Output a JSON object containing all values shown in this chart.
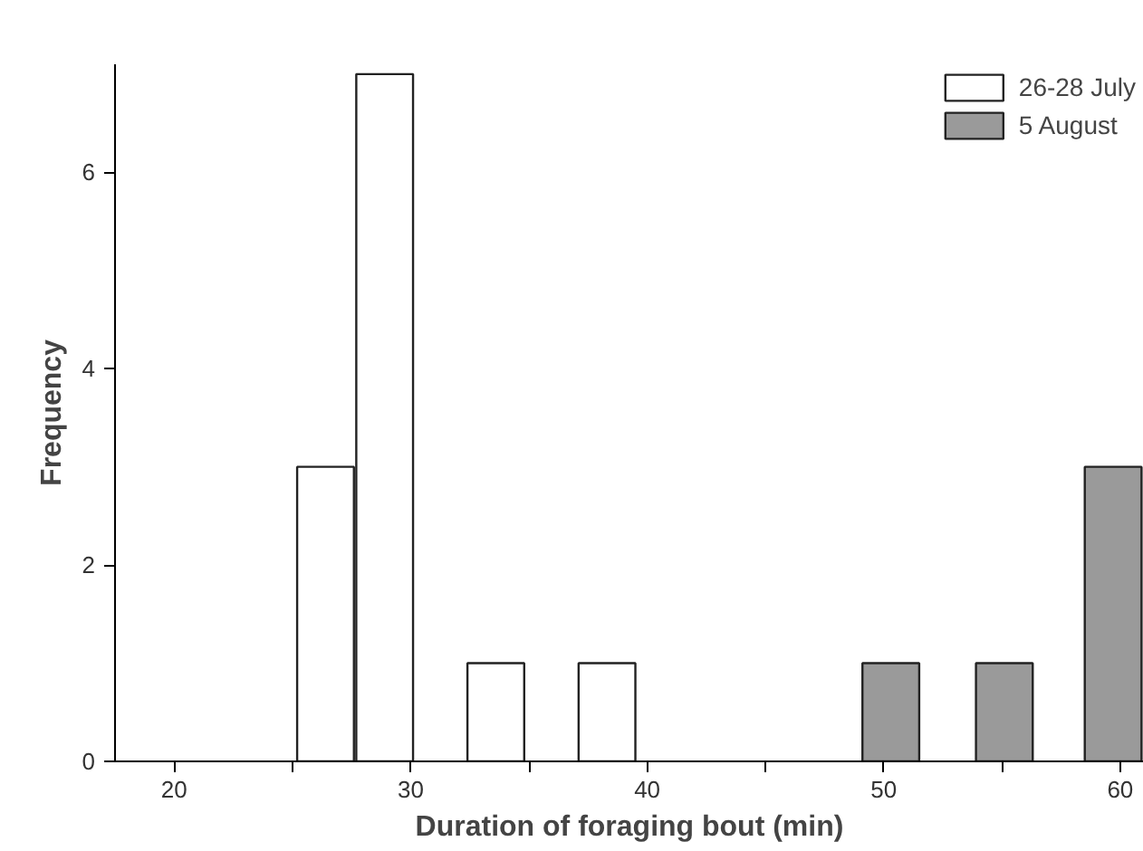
{
  "chart_data": {
    "type": "bar",
    "xlabel": "Duration of foraging bout (min)",
    "ylabel": "Frequency",
    "xlim": [
      17.5,
      61
    ],
    "xticks": [
      20,
      {
        "value": 25,
        "label": null
      },
      30,
      {
        "value": 35,
        "label": null
      },
      40,
      {
        "value": 45,
        "label": null
      },
      50,
      {
        "value": 55,
        "label": null
      },
      60
    ],
    "ylim": [
      0,
      7.1
    ],
    "yticks": [
      0,
      2,
      4,
      6
    ],
    "grid": false,
    "legend": "top right",
    "series": [
      {
        "name": "26-28 July",
        "color": "#ffffff",
        "x": [
          26.4,
          28.9,
          33.6,
          38.3
        ],
        "values": [
          3,
          7,
          1,
          1
        ]
      },
      {
        "name": "5 August",
        "color": "#9a9a9a",
        "x": [
          50.3,
          55.1,
          59.7
        ],
        "values": [
          1,
          1,
          3
        ]
      }
    ]
  }
}
